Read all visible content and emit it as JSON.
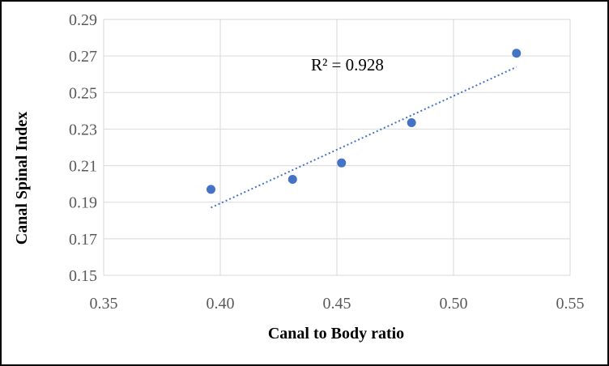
{
  "chart_data": {
    "type": "scatter",
    "title": "",
    "xlabel": "Canal to Body ratio",
    "ylabel": "Canal Spinal Index",
    "xlim": [
      0.35,
      0.55
    ],
    "ylim": [
      0.15,
      0.29
    ],
    "x_ticks": [
      "0.35",
      "0.40",
      "0.45",
      "0.50",
      "0.55"
    ],
    "y_ticks": [
      "0.15",
      "0.17",
      "0.19",
      "0.21",
      "0.23",
      "0.25",
      "0.27",
      "0.29"
    ],
    "grid": true,
    "legend": "none",
    "series": [
      {
        "points": [
          {
            "x": 0.396,
            "y": 0.197
          },
          {
            "x": 0.431,
            "y": 0.2025
          },
          {
            "x": 0.452,
            "y": 0.2115
          },
          {
            "x": 0.482,
            "y": 0.2335
          },
          {
            "x": 0.527,
            "y": 0.2715
          }
        ],
        "color": "#4472C4"
      }
    ],
    "trendline": {
      "type": "linear",
      "x_range": [
        0.396,
        0.527
      ],
      "y_range": [
        0.187,
        0.264
      ],
      "color": "#4472C4",
      "style": "dotted"
    },
    "annotation": "R² = 0.928"
  }
}
